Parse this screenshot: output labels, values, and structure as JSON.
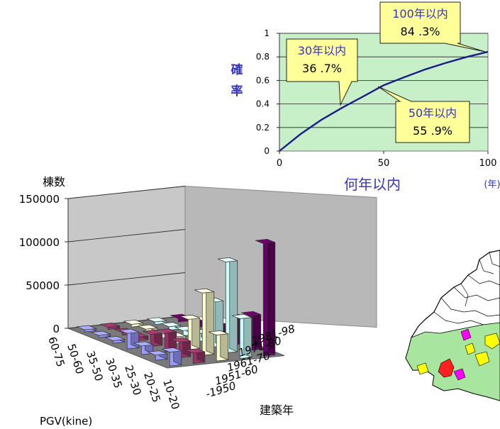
{
  "chart_data": [
    {
      "type": "line",
      "xlabel": "何年以内",
      "x_unit": "(年)",
      "ylabel": "確率",
      "xlim": [
        0,
        100
      ],
      "ylim": [
        0,
        1
      ],
      "x_ticks": [
        "0",
        "50",
        "100"
      ],
      "y_ticks": [
        "0",
        "0.2",
        "0.4",
        "0.6",
        "0.8",
        "1"
      ],
      "grid": true,
      "colors": {
        "line": "#1c1c8c",
        "plot_bg": "#c8f0c8",
        "callout_bg": "#ffff99",
        "label": "#3333cc"
      },
      "points": [
        {
          "x": 0,
          "y": 0
        },
        {
          "x": 10,
          "y": 0.142
        },
        {
          "x": 20,
          "y": 0.264
        },
        {
          "x": 30,
          "y": 0.367
        },
        {
          "x": 40,
          "y": 0.462
        },
        {
          "x": 50,
          "y": 0.559
        },
        {
          "x": 60,
          "y": 0.628
        },
        {
          "x": 70,
          "y": 0.694
        },
        {
          "x": 80,
          "y": 0.75
        },
        {
          "x": 90,
          "y": 0.8
        },
        {
          "x": 100,
          "y": 0.843
        }
      ],
      "callouts": [
        {
          "label": "30年以内",
          "value": "36 .7%",
          "x": 30,
          "y": 0.367
        },
        {
          "label": "50年以内",
          "value": "55 .9%",
          "x": 50,
          "y": 0.559
        },
        {
          "label": "100年以内",
          "value": "84 .3%",
          "x": 100,
          "y": 0.843
        }
      ]
    },
    {
      "type": "bar3d",
      "zlabel": "棟数",
      "xlabel": "PGV(kine)",
      "ylabel": "建築年",
      "zlim": [
        0,
        150000
      ],
      "z_ticks": [
        "0",
        "50000",
        "100000",
        "150000"
      ],
      "pgv_categories": [
        "60-75",
        "50-60",
        "35-50",
        "30-35",
        "25-30",
        "20-25",
        "10-20"
      ],
      "year_categories": [
        "-1950",
        "1951-60",
        "1961-70",
        "1971-80",
        "1981-98"
      ],
      "colors": [
        "#9999ff",
        "#993366",
        "#ffffcc",
        "#ccffff",
        "#660066"
      ],
      "values": [
        [
          2000,
          2000,
          3000,
          3000,
          4000
        ],
        [
          2000,
          3000,
          4000,
          4000,
          6000
        ],
        [
          3000,
          4000,
          5000,
          6000,
          8000
        ],
        [
          18000,
          14000,
          8000,
          9000,
          13000
        ],
        [
          10000,
          22000,
          35000,
          52000,
          30000
        ],
        [
          6000,
          18000,
          72000,
          105000,
          40000
        ],
        [
          16000,
          12000,
          30000,
          46000,
          130000
        ]
      ]
    }
  ]
}
